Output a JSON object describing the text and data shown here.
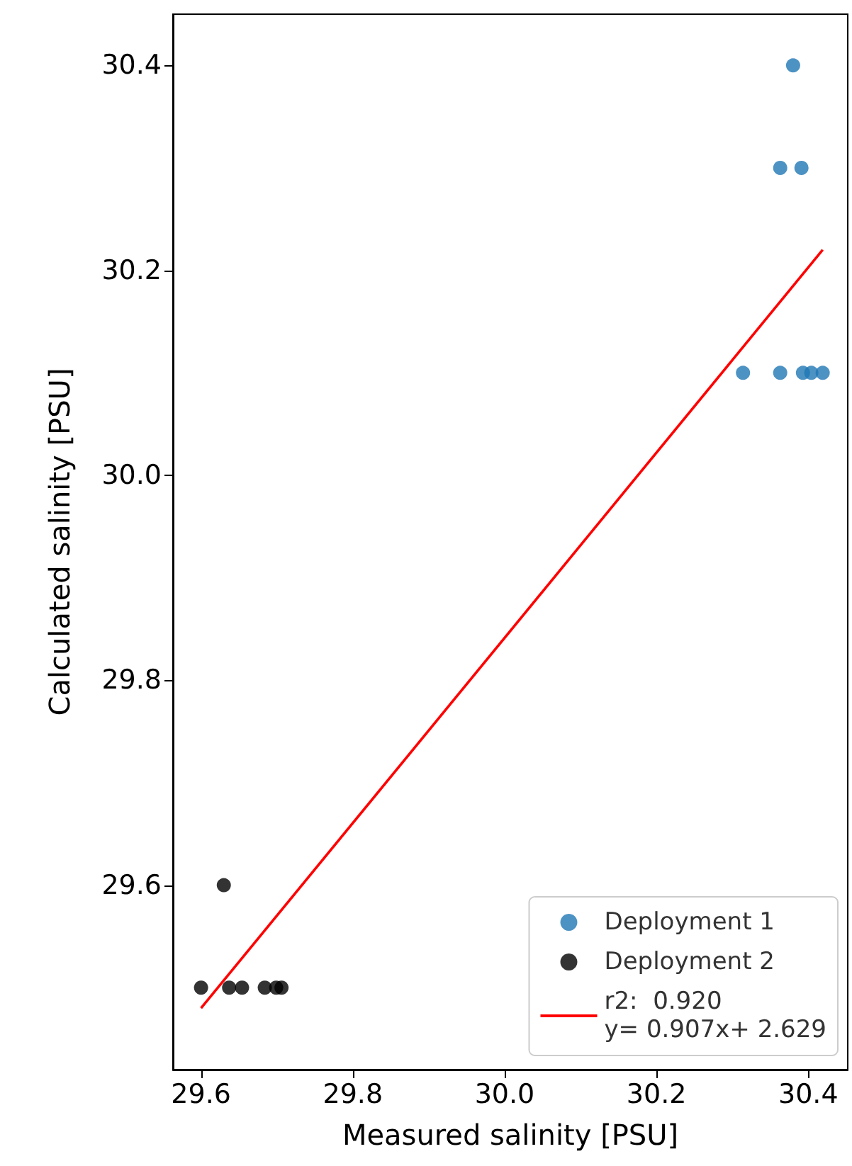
{
  "chart_data": {
    "type": "scatter",
    "xlabel": "Measured salinity [PSU]",
    "ylabel": "Calculated salinity [PSU]",
    "xlim": [
      29.563,
      30.452
    ],
    "ylim": [
      29.42,
      30.45
    ],
    "xticks": [
      {
        "value": 29.6,
        "label": "29.6"
      },
      {
        "value": 29.8,
        "label": "29.8"
      },
      {
        "value": 30.0,
        "label": "30.0"
      },
      {
        "value": 30.2,
        "label": "30.2"
      },
      {
        "value": 30.4,
        "label": "30.4"
      }
    ],
    "yticks": [
      {
        "value": 29.6,
        "label": "29.6"
      },
      {
        "value": 29.8,
        "label": "29.8"
      },
      {
        "value": 30.0,
        "label": "30.0"
      },
      {
        "value": 30.2,
        "label": "30.2"
      },
      {
        "value": 30.4,
        "label": "30.4"
      }
    ],
    "legend": "bottom right",
    "grid": false,
    "series": [
      {
        "name": "Deployment 1",
        "color": "#1f77b4",
        "x": [
          30.38,
          30.363,
          30.391,
          30.314,
          30.363,
          30.393,
          30.404,
          30.419
        ],
        "values": [
          30.4,
          30.3,
          30.3,
          30.1,
          30.1,
          30.1,
          30.1,
          30.1
        ],
        "marker": "circle"
      },
      {
        "name": "Deployment 2",
        "color": "#000000",
        "x": [
          29.6,
          29.63,
          29.637,
          29.654,
          29.684,
          29.699,
          29.706
        ],
        "values": [
          29.5,
          29.6,
          29.5,
          29.5,
          29.5,
          29.5,
          29.5
        ],
        "marker": "circle"
      },
      {
        "name": "r2:  0.920\ny= 0.907x+ 2.629",
        "type": "line",
        "color": "#ff0000",
        "x": [
          29.6,
          30.419
        ],
        "values": [
          29.48,
          30.22
        ],
        "marker": "none"
      }
    ]
  }
}
